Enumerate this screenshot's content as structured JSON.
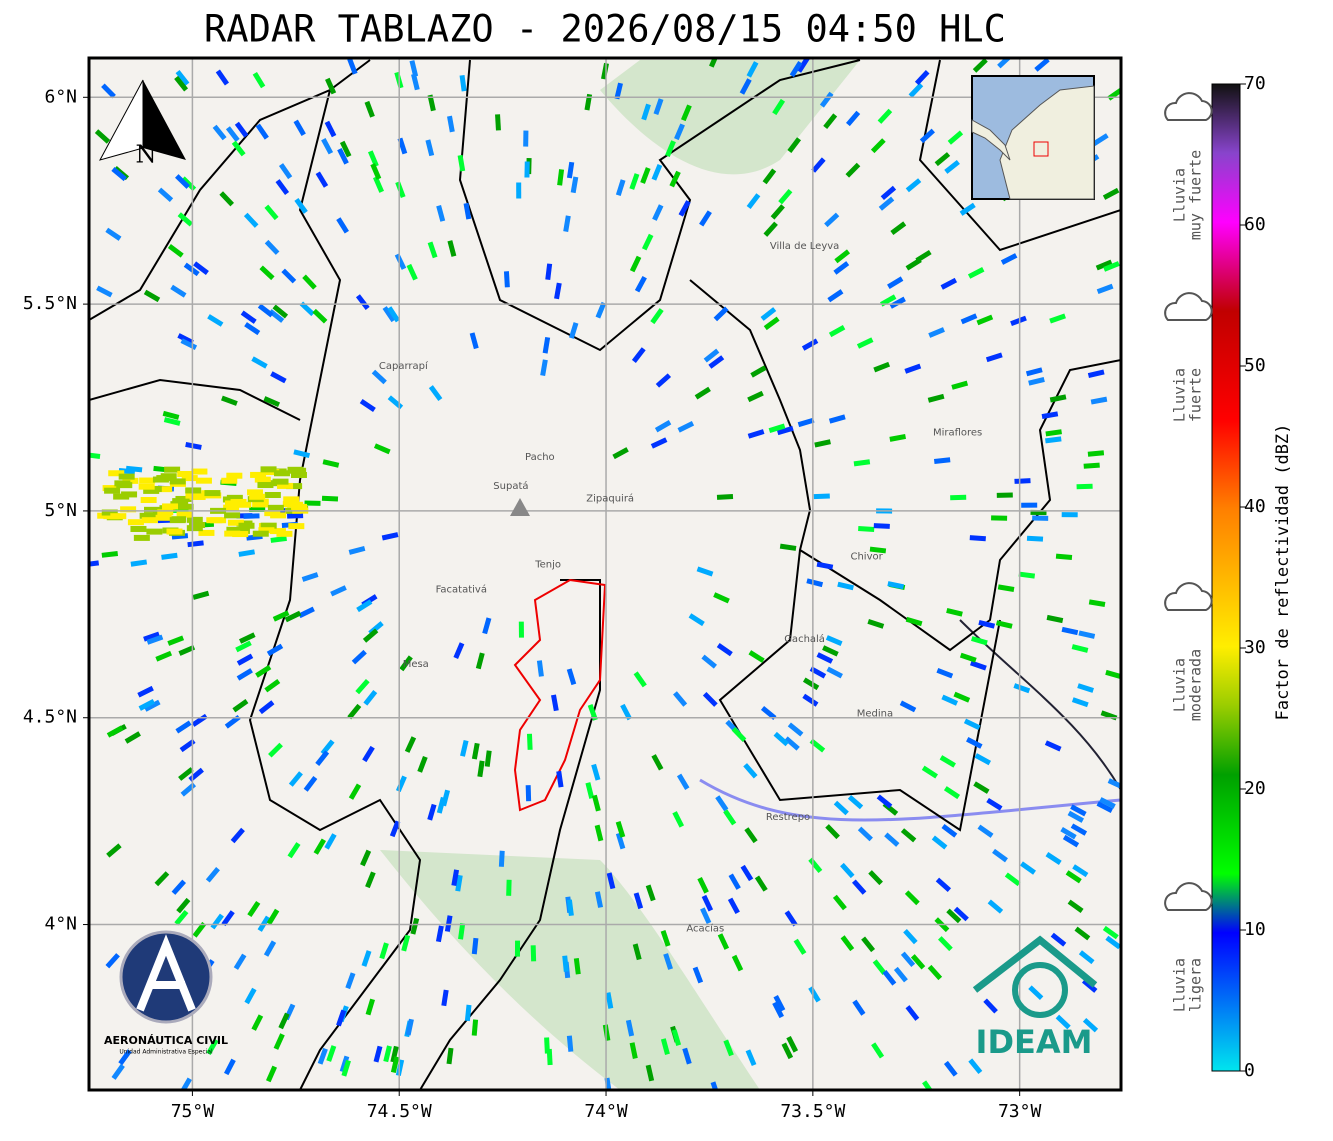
{
  "title": "RADAR TABLAZO - 2026/08/15 04:50 HLC",
  "map": {
    "lonlim": [
      -75.25,
      -72.755
    ],
    "latlim": [
      3.6,
      6.095
    ],
    "lon_ticks": [
      {
        "value": -75,
        "label": "75°W"
      },
      {
        "value": -74.5,
        "label": "74.5°W"
      },
      {
        "value": -74,
        "label": "74°W"
      },
      {
        "value": -73.5,
        "label": "73.5°W"
      },
      {
        "value": -73,
        "label": "73°W"
      }
    ],
    "lat_ticks": [
      {
        "value": 4,
        "label": "4°N"
      },
      {
        "value": 4.5,
        "label": "4.5°N"
      },
      {
        "value": 5,
        "label": "5°N"
      },
      {
        "value": 5.5,
        "label": "5.5°N"
      },
      {
        "value": 6,
        "label": "6°N"
      }
    ],
    "places": [
      {
        "name": "Pacho",
        "lon": -74.16,
        "lat": 5.13
      },
      {
        "name": "Zipaquirá",
        "lon": -73.99,
        "lat": 5.03
      },
      {
        "name": "Supatá",
        "lon": -74.23,
        "lat": 5.06
      },
      {
        "name": "Villa de Leyva",
        "lon": -73.52,
        "lat": 5.64
      },
      {
        "name": "Tenjo",
        "lon": -74.14,
        "lat": 4.87
      },
      {
        "name": "Gachalá",
        "lon": -73.52,
        "lat": 4.69
      },
      {
        "name": "Medina",
        "lon": -73.35,
        "lat": 4.51
      },
      {
        "name": "Restrepo",
        "lon": -73.56,
        "lat": 4.26
      },
      {
        "name": "Caparrapí",
        "lon": -74.49,
        "lat": 5.35
      },
      {
        "name": "Facatativá",
        "lon": -74.35,
        "lat": 4.81
      },
      {
        "name": "Mesa",
        "lon": -74.46,
        "lat": 4.63
      },
      {
        "name": "Miraflores",
        "lon": -73.15,
        "lat": 5.19
      },
      {
        "name": "Chivor",
        "lon": -73.37,
        "lat": 4.89
      },
      {
        "name": "Acacías",
        "lon": -73.76,
        "lat": 3.99
      }
    ]
  },
  "north_label": "N",
  "colorbar": {
    "label": "Factor de reflectividad (dBZ)",
    "lim": [
      0,
      70
    ],
    "ticks": [
      0,
      10,
      20,
      30,
      40,
      50,
      60,
      70
    ]
  },
  "rain_labels": [
    [
      "Lluvia",
      "muy fuerte"
    ],
    [
      "Lluvia",
      "fuerte"
    ],
    [
      "Lluvia",
      "moderada"
    ],
    [
      "Lluvia",
      "ligera"
    ]
  ],
  "logos": {
    "aerocivil": "AERONÁUTICA CIVIL",
    "aerocivil_sub": "Unidad Administrativa Especial",
    "ideam": "IDEAM"
  }
}
